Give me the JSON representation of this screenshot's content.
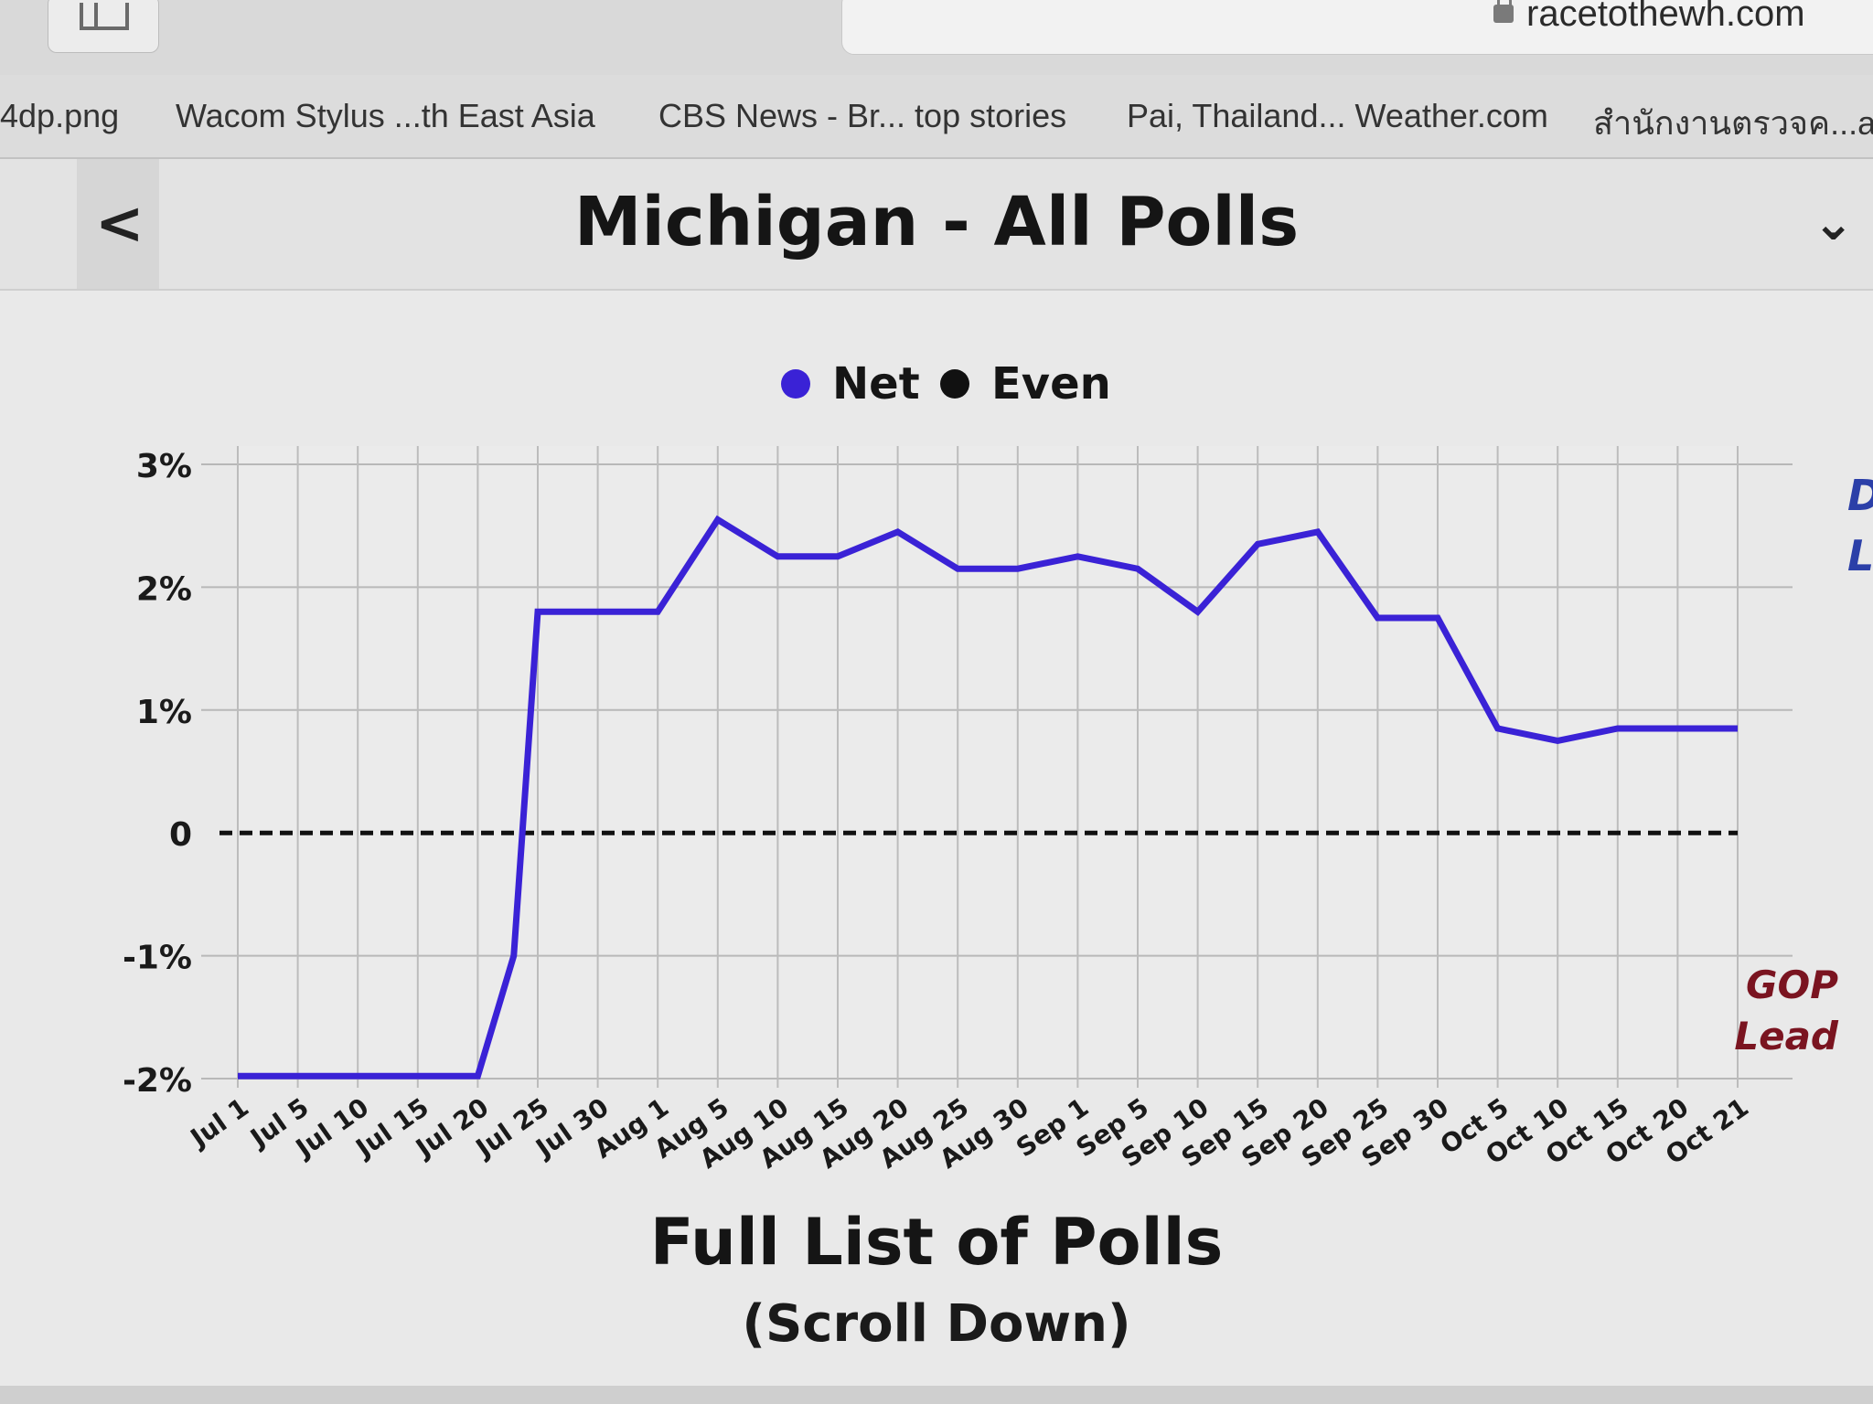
{
  "browser": {
    "url": "racetothewh.com",
    "bookmarks": [
      "4dp.png",
      "Wacom Stylus ...th East Asia",
      "CBS News - Br... top stories",
      "Pai, Thailand... Weather.com",
      "สำนักงานตรวจค...ati"
    ]
  },
  "header": {
    "back_label": "<",
    "title": "Michigan - All Polls",
    "menu_label": "⌄"
  },
  "chart_data": {
    "type": "line",
    "legend": [
      {
        "name": "Net",
        "color": "#3a22d6"
      },
      {
        "name": "Even",
        "color": "#111111"
      }
    ],
    "legend_placement": "top-center",
    "y_ticks": [
      "3%",
      "2%",
      "1%",
      "0",
      "-1%",
      "-2%"
    ],
    "ylim": [
      -2,
      3
    ],
    "x_ticks": [
      "Jul 1",
      "Jul 5",
      "Jul 10",
      "Jul 15",
      "Jul 20",
      "Jul 25",
      "Jul 30",
      "Aug 1",
      "Aug 5",
      "Aug 10",
      "Aug 15",
      "Aug 20",
      "Aug 25",
      "Aug 30",
      "Sep 1",
      "Sep 5",
      "Sep 10",
      "Sep 15",
      "Sep 20",
      "Sep 25",
      "Sep 30",
      "Oct 5",
      "Oct 10",
      "Oct 15",
      "Oct 20",
      "Oct 21"
    ],
    "series": [
      {
        "name": "Net",
        "color": "#3a22d6",
        "x": [
          "Jul 1",
          "Jul 5",
          "Jul 10",
          "Jul 15",
          "Jul 20",
          "Jul 23",
          "Jul 25",
          "Jul 30",
          "Aug 1",
          "Aug 5",
          "Aug 10",
          "Aug 15",
          "Aug 20",
          "Aug 25",
          "Aug 30",
          "Sep 1",
          "Sep 5",
          "Sep 10",
          "Sep 15",
          "Sep 20",
          "Sep 25",
          "Sep 30",
          "Oct 5",
          "Oct 10",
          "Oct 15",
          "Oct 20",
          "Oct 21"
        ],
        "values": [
          -1.98,
          -1.98,
          -1.98,
          -1.98,
          -1.98,
          -1.0,
          1.8,
          1.8,
          1.8,
          2.55,
          2.25,
          2.25,
          2.45,
          2.15,
          2.15,
          2.25,
          2.15,
          1.8,
          2.35,
          2.45,
          1.75,
          1.75,
          0.85,
          0.75,
          0.85,
          0.85,
          0.85
        ]
      },
      {
        "name": "Even",
        "color": "#111111",
        "style": "dashed",
        "constant": 0
      }
    ],
    "side_labels": {
      "dem": "D\nLe",
      "gop": "GOP\nLead"
    },
    "grid": true
  },
  "footer": {
    "title": "Full List of Polls",
    "subtitle": "(Scroll Down)"
  }
}
